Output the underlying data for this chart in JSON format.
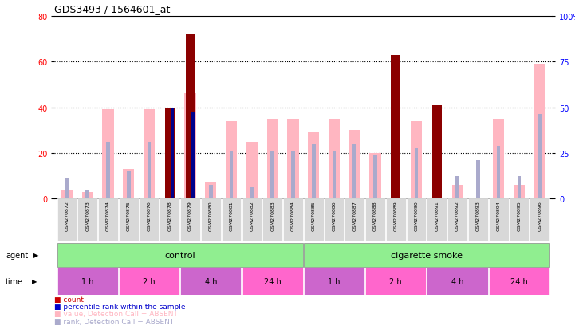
{
  "title": "GDS3493 / 1564601_at",
  "samples": [
    "GSM270872",
    "GSM270873",
    "GSM270874",
    "GSM270875",
    "GSM270876",
    "GSM270878",
    "GSM270879",
    "GSM270880",
    "GSM270881",
    "GSM270882",
    "GSM270883",
    "GSM270884",
    "GSM270885",
    "GSM270886",
    "GSM270887",
    "GSM270888",
    "GSM270889",
    "GSM270890",
    "GSM270891",
    "GSM270892",
    "GSM270893",
    "GSM270894",
    "GSM270895",
    "GSM270896"
  ],
  "count_values": [
    0,
    0,
    0,
    0,
    0,
    40,
    72,
    0,
    0,
    0,
    0,
    0,
    0,
    0,
    0,
    0,
    63,
    0,
    41,
    0,
    0,
    0,
    0,
    0
  ],
  "percentile_values": [
    0,
    0,
    0,
    0,
    0,
    40,
    38,
    0,
    0,
    0,
    0,
    0,
    0,
    0,
    0,
    0,
    0,
    0,
    0,
    0,
    0,
    0,
    0,
    0
  ],
  "value_absent": [
    4,
    3,
    39,
    13,
    39,
    0,
    46,
    7,
    34,
    25,
    35,
    35,
    29,
    35,
    30,
    20,
    0,
    34,
    0,
    6,
    0,
    35,
    6,
    59
  ],
  "rank_absent": [
    9,
    4,
    25,
    12,
    25,
    0,
    0,
    6,
    21,
    5,
    21,
    21,
    24,
    21,
    24,
    19,
    0,
    22,
    14,
    10,
    17,
    23,
    10,
    37
  ],
  "ylim_left": [
    0,
    80
  ],
  "ylim_right": [
    0,
    100
  ],
  "yticks_left": [
    0,
    20,
    40,
    60,
    80
  ],
  "yticks_right": [
    0,
    25,
    50,
    75,
    100
  ],
  "color_count": "#8B0000",
  "color_percentile": "#00008B",
  "color_value_absent": "#FFB6C1",
  "color_rank_absent": "#AAAACC",
  "bg_color": "#FFFFFF",
  "legend_items": [
    {
      "label": "count",
      "color": "#CC0000"
    },
    {
      "label": "percentile rank within the sample",
      "color": "#0000CC"
    },
    {
      "label": "value, Detection Call = ABSENT",
      "color": "#FFB6C1"
    },
    {
      "label": "rank, Detection Call = ABSENT",
      "color": "#AAAACC"
    }
  ],
  "time_colors": [
    "#CC66CC",
    "#FF66CC",
    "#CC66CC",
    "#FF66CC",
    "#CC66CC",
    "#FF66CC",
    "#CC66CC",
    "#FF66CC"
  ],
  "time_labels": [
    "1 h",
    "2 h",
    "4 h",
    "24 h",
    "1 h",
    "2 h",
    "4 h",
    "24 h"
  ],
  "time_ranges": [
    [
      0,
      3
    ],
    [
      3,
      6
    ],
    [
      6,
      9
    ],
    [
      9,
      12
    ],
    [
      12,
      15
    ],
    [
      15,
      18
    ],
    [
      18,
      21
    ],
    [
      21,
      24
    ]
  ],
  "agent_color": "#90EE90"
}
